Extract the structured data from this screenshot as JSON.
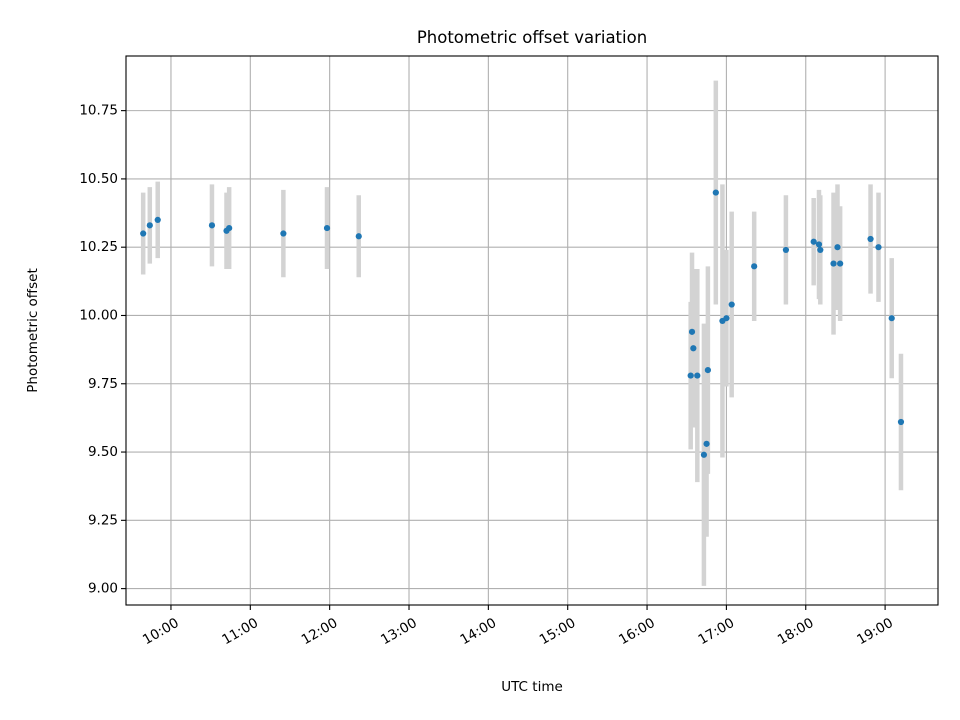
{
  "chart_data": {
    "type": "scatter",
    "title": "Photometric offset variation",
    "xlabel": "UTC time",
    "ylabel": "Photometric offset",
    "xlim": [
      "09:26",
      "19:40"
    ],
    "ylim": [
      8.94,
      10.95
    ],
    "grid": true,
    "x_ticks": [
      "10:00",
      "11:00",
      "12:00",
      "13:00",
      "14:00",
      "15:00",
      "16:00",
      "17:00",
      "18:00",
      "19:00"
    ],
    "y_ticks": [
      "9.00",
      "9.25",
      "9.50",
      "9.75",
      "10.00",
      "10.25",
      "10.50",
      "10.75"
    ],
    "colors": {
      "marker": "#1f77b4",
      "errorbar": "#d3d3d3"
    },
    "points": [
      {
        "x": "09:39",
        "y": 10.3,
        "err": 0.15
      },
      {
        "x": "09:44",
        "y": 10.33,
        "err": 0.14
      },
      {
        "x": "09:50",
        "y": 10.35,
        "err": 0.14
      },
      {
        "x": "10:31",
        "y": 10.33,
        "err": 0.15
      },
      {
        "x": "10:42",
        "y": 10.31,
        "err": 0.14
      },
      {
        "x": "10:44",
        "y": 10.32,
        "err": 0.15
      },
      {
        "x": "11:25",
        "y": 10.3,
        "err": 0.16
      },
      {
        "x": "11:58",
        "y": 10.32,
        "err": 0.15
      },
      {
        "x": "12:22",
        "y": 10.29,
        "err": 0.15
      },
      {
        "x": "16:33",
        "y": 9.78,
        "err": 0.27
      },
      {
        "x": "16:34",
        "y": 9.94,
        "err": 0.29
      },
      {
        "x": "16:35",
        "y": 9.88,
        "err": 0.29
      },
      {
        "x": "16:38",
        "y": 9.78,
        "err": 0.39
      },
      {
        "x": "16:43",
        "y": 9.49,
        "err": 0.48
      },
      {
        "x": "16:45",
        "y": 9.53,
        "err": 0.34
      },
      {
        "x": "16:46",
        "y": 9.8,
        "err": 0.38
      },
      {
        "x": "16:52",
        "y": 10.45,
        "err": 0.41
      },
      {
        "x": "16:57",
        "y": 9.98,
        "err": 0.5
      },
      {
        "x": "17:00",
        "y": 9.99,
        "err": 0.25
      },
      {
        "x": "17:04",
        "y": 10.04,
        "err": 0.34
      },
      {
        "x": "17:21",
        "y": 10.18,
        "err": 0.2
      },
      {
        "x": "17:45",
        "y": 10.24,
        "err": 0.2
      },
      {
        "x": "18:06",
        "y": 10.27,
        "err": 0.16
      },
      {
        "x": "18:10",
        "y": 10.26,
        "err": 0.2
      },
      {
        "x": "18:11",
        "y": 10.24,
        "err": 0.2
      },
      {
        "x": "18:21",
        "y": 10.19,
        "err": 0.26
      },
      {
        "x": "18:24",
        "y": 10.25,
        "err": 0.23
      },
      {
        "x": "18:26",
        "y": 10.19,
        "err": 0.21
      },
      {
        "x": "18:49",
        "y": 10.28,
        "err": 0.2
      },
      {
        "x": "18:55",
        "y": 10.25,
        "err": 0.2
      },
      {
        "x": "19:05",
        "y": 9.99,
        "err": 0.22
      },
      {
        "x": "19:12",
        "y": 9.61,
        "err": 0.25
      }
    ]
  }
}
